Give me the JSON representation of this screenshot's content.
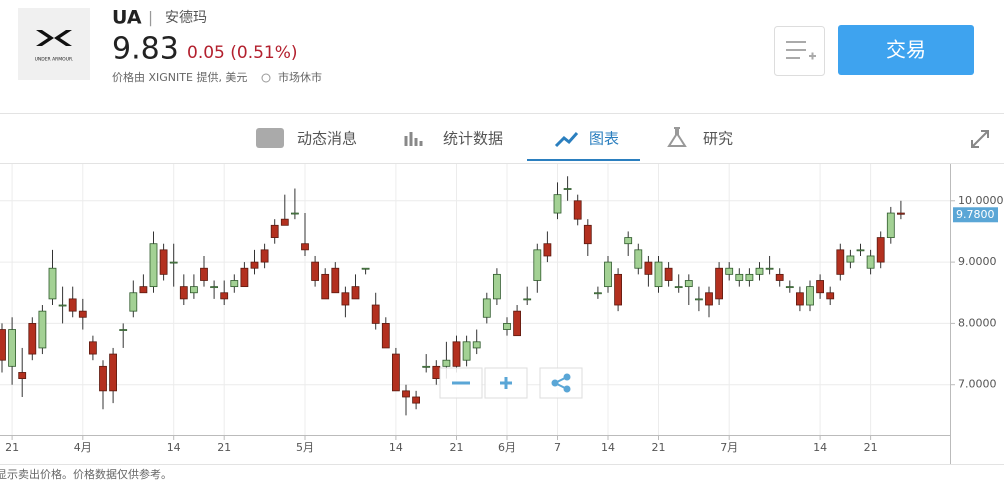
{
  "header": {
    "logo_text": "UNDER ARMOUR.",
    "symbol": "UA",
    "separator": "|",
    "name": "安德玛",
    "price": "9.83",
    "change": "0.05 (0.51%)",
    "source": "价格由 XIGNITE 提供, 美元",
    "market_status": "市场休市",
    "trade_button": "交易"
  },
  "tabs": [
    "动态消息",
    "统计数据",
    "图表",
    "研究"
  ],
  "footer": "显示卖出价格。价格数据仅供参考。",
  "chart_data": {
    "type": "candlestick",
    "up_color": "#a3d194",
    "down_color": "#b3301f",
    "ylim": [
      6.18,
      10.6
    ],
    "yticks": [
      {
        "value": 7,
        "label": "7.0000"
      },
      {
        "value": 8,
        "label": "8.0000"
      },
      {
        "value": 9,
        "label": "9.0000"
      },
      {
        "value": 10,
        "label": "10.0000"
      }
    ],
    "last_price": {
      "value": 9.78,
      "label": "9.7800"
    },
    "grid": true,
    "categories": [
      null,
      "21",
      null,
      null,
      null,
      null,
      null,
      null,
      "4月",
      null,
      null,
      null,
      null,
      null,
      null,
      null,
      null,
      "14",
      null,
      null,
      null,
      null,
      "21",
      null,
      null,
      null,
      null,
      null,
      null,
      null,
      "5月",
      null,
      null,
      null,
      null,
      null,
      null,
      null,
      null,
      "14",
      null,
      null,
      null,
      null,
      null,
      "21",
      null,
      null,
      null,
      null,
      "6月",
      null,
      null,
      null,
      null,
      "7",
      null,
      null,
      null,
      null,
      "14",
      null,
      null,
      null,
      null,
      "21",
      null,
      null,
      null,
      null,
      null,
      null,
      "7月",
      null,
      null,
      null,
      null,
      null,
      null,
      null,
      null,
      "14",
      null,
      null,
      null,
      null,
      "21",
      null,
      null,
      null
    ],
    "candles": [
      [
        7.9,
        8.0,
        7.2,
        7.4
      ],
      [
        7.3,
        8.1,
        7.0,
        7.9
      ],
      [
        7.2,
        7.6,
        6.8,
        7.1
      ],
      [
        8.0,
        8.1,
        7.4,
        7.5
      ],
      [
        7.6,
        8.3,
        7.5,
        8.2
      ],
      [
        8.4,
        9.2,
        8.3,
        8.9
      ],
      [
        8.3,
        8.6,
        8.0,
        8.3
      ],
      [
        8.4,
        8.6,
        8.1,
        8.2
      ],
      [
        8.2,
        8.4,
        7.9,
        8.1
      ],
      [
        7.7,
        7.8,
        7.4,
        7.5
      ],
      [
        7.3,
        7.4,
        6.6,
        6.9
      ],
      [
        7.5,
        7.6,
        6.7,
        6.9
      ],
      [
        7.9,
        8.0,
        7.6,
        7.9
      ],
      [
        8.2,
        8.7,
        8.1,
        8.5
      ],
      [
        8.6,
        8.8,
        8.5,
        8.5
      ],
      [
        8.6,
        9.5,
        8.5,
        9.3
      ],
      [
        9.2,
        9.3,
        8.7,
        8.8
      ],
      [
        9.0,
        9.3,
        8.6,
        9.0
      ],
      [
        8.6,
        8.8,
        8.3,
        8.4
      ],
      [
        8.5,
        8.8,
        8.4,
        8.6
      ],
      [
        8.9,
        9.1,
        8.6,
        8.7
      ],
      [
        8.6,
        8.7,
        8.4,
        8.6
      ],
      [
        8.5,
        8.7,
        8.3,
        8.4
      ],
      [
        8.6,
        8.8,
        8.5,
        8.7
      ],
      [
        8.9,
        9.0,
        8.6,
        8.6
      ],
      [
        9.0,
        9.2,
        8.8,
        8.9
      ],
      [
        9.2,
        9.3,
        8.9,
        9.0
      ],
      [
        9.6,
        9.7,
        9.3,
        9.4
      ],
      [
        9.7,
        10.1,
        9.6,
        9.6
      ],
      [
        9.8,
        10.2,
        9.7,
        9.8
      ],
      [
        9.3,
        9.8,
        9.1,
        9.2
      ],
      [
        9.0,
        9.1,
        8.6,
        8.7
      ],
      [
        8.8,
        8.9,
        8.4,
        8.4
      ],
      [
        8.9,
        9.0,
        8.5,
        8.5
      ],
      [
        8.5,
        8.6,
        8.1,
        8.3
      ],
      [
        8.6,
        8.8,
        8.4,
        8.4
      ],
      [
        8.9,
        8.9,
        8.8,
        8.9
      ],
      [
        8.3,
        8.5,
        7.9,
        8.0
      ],
      [
        8.0,
        8.1,
        7.6,
        7.6
      ],
      [
        7.5,
        7.6,
        6.9,
        6.9
      ],
      [
        6.9,
        7.0,
        6.5,
        6.8
      ],
      [
        6.8,
        6.9,
        6.6,
        6.7
      ],
      [
        7.3,
        7.5,
        7.2,
        7.3
      ],
      [
        7.3,
        7.4,
        7.0,
        7.1
      ],
      [
        7.3,
        7.7,
        7.1,
        7.4
      ],
      [
        7.7,
        7.8,
        7.2,
        7.3
      ],
      [
        7.4,
        7.8,
        7.3,
        7.7
      ],
      [
        7.6,
        7.9,
        7.5,
        7.7
      ],
      [
        8.1,
        8.5,
        8.0,
        8.4
      ],
      [
        8.4,
        8.9,
        8.3,
        8.8
      ],
      [
        7.9,
        8.1,
        7.8,
        8.0
      ],
      [
        8.2,
        8.3,
        7.8,
        7.8
      ],
      [
        8.4,
        8.6,
        8.3,
        8.4
      ],
      [
        8.7,
        9.3,
        8.5,
        9.2
      ],
      [
        9.3,
        9.5,
        9.0,
        9.1
      ],
      [
        9.8,
        10.3,
        9.7,
        10.1
      ],
      [
        10.2,
        10.4,
        10.0,
        10.2
      ],
      [
        10.0,
        10.1,
        9.6,
        9.7
      ],
      [
        9.6,
        9.7,
        9.1,
        9.3
      ],
      [
        8.5,
        8.6,
        8.4,
        8.5
      ],
      [
        8.6,
        9.1,
        8.5,
        9.0
      ],
      [
        8.8,
        8.9,
        8.2,
        8.3
      ],
      [
        9.3,
        9.5,
        9.1,
        9.4
      ],
      [
        8.9,
        9.3,
        8.8,
        9.2
      ],
      [
        9.0,
        9.1,
        8.6,
        8.8
      ],
      [
        8.6,
        9.1,
        8.5,
        9.0
      ],
      [
        8.9,
        9.0,
        8.6,
        8.7
      ],
      [
        8.6,
        8.8,
        8.5,
        8.6
      ],
      [
        8.6,
        8.8,
        8.3,
        8.7
      ],
      [
        8.4,
        8.6,
        8.2,
        8.4
      ],
      [
        8.5,
        8.6,
        8.1,
        8.3
      ],
      [
        8.9,
        9.0,
        8.3,
        8.4
      ],
      [
        8.8,
        9.0,
        8.7,
        8.9
      ],
      [
        8.7,
        8.9,
        8.6,
        8.8
      ],
      [
        8.7,
        8.9,
        8.6,
        8.8
      ],
      [
        8.8,
        9.0,
        8.7,
        8.9
      ],
      [
        8.9,
        9.1,
        8.8,
        8.9
      ],
      [
        8.8,
        8.9,
        8.6,
        8.7
      ],
      [
        8.6,
        8.7,
        8.5,
        8.6
      ],
      [
        8.5,
        8.6,
        8.2,
        8.3
      ],
      [
        8.3,
        8.7,
        8.2,
        8.6
      ],
      [
        8.7,
        8.8,
        8.4,
        8.5
      ],
      [
        8.5,
        8.6,
        8.3,
        8.4
      ],
      [
        9.2,
        9.3,
        8.7,
        8.8
      ],
      [
        9.0,
        9.2,
        8.9,
        9.1
      ],
      [
        9.2,
        9.3,
        9.1,
        9.2
      ],
      [
        8.9,
        9.2,
        8.8,
        9.1
      ],
      [
        9.4,
        9.5,
        8.9,
        9.0
      ],
      [
        9.4,
        9.9,
        9.3,
        9.8
      ],
      [
        9.8,
        10.0,
        9.7,
        9.78
      ]
    ]
  }
}
